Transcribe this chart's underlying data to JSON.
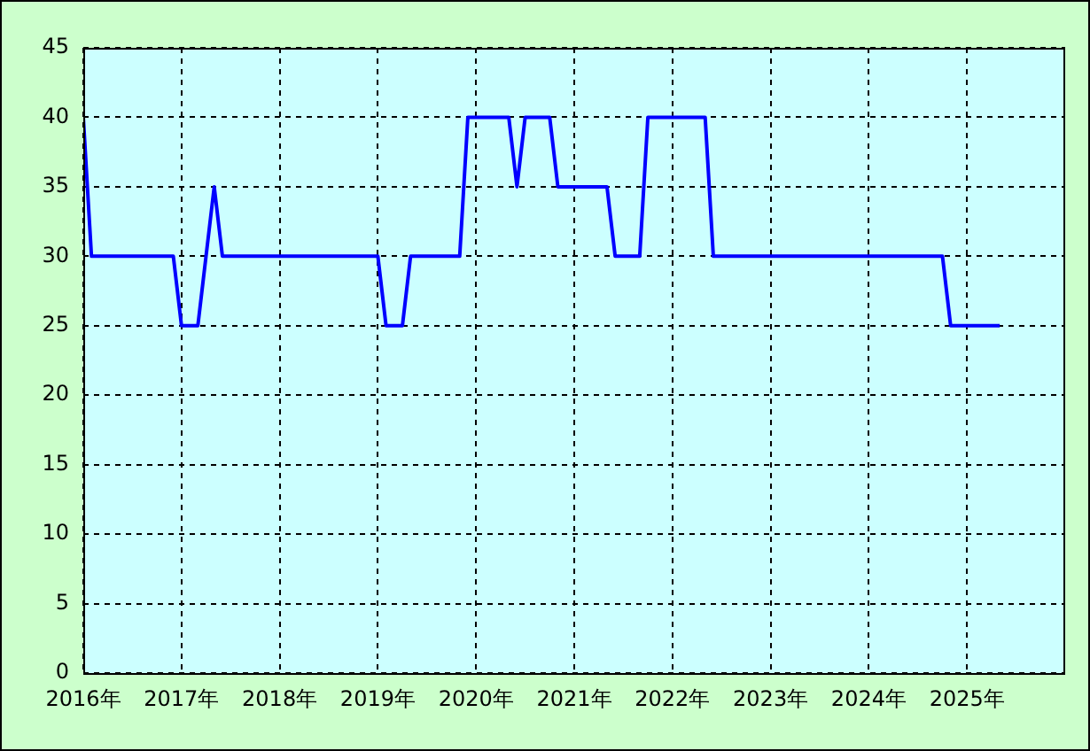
{
  "chart_data": {
    "type": "line",
    "x": [
      "2016-01",
      "2016-02",
      "2016-03",
      "2016-04",
      "2016-05",
      "2016-06",
      "2016-07",
      "2016-08",
      "2016-09",
      "2016-10",
      "2016-11",
      "2016-12",
      "2017-01",
      "2017-02",
      "2017-03",
      "2017-04",
      "2017-05",
      "2017-06",
      "2017-07",
      "2017-08",
      "2017-09",
      "2017-10",
      "2017-11",
      "2017-12",
      "2018-01",
      "2018-02",
      "2018-03",
      "2018-04",
      "2018-05",
      "2018-06",
      "2018-07",
      "2018-08",
      "2018-09",
      "2018-10",
      "2018-11",
      "2018-12",
      "2019-01",
      "2019-02",
      "2019-03",
      "2019-04",
      "2019-05",
      "2019-06",
      "2019-07",
      "2019-08",
      "2019-09",
      "2019-10",
      "2019-11",
      "2019-12",
      "2020-01",
      "2020-02",
      "2020-03",
      "2020-04",
      "2020-05",
      "2020-06",
      "2020-07",
      "2020-08",
      "2020-09",
      "2020-10",
      "2020-11",
      "2020-12",
      "2021-01",
      "2021-02",
      "2021-03",
      "2021-04",
      "2021-05",
      "2021-06",
      "2021-07",
      "2021-08",
      "2021-09",
      "2021-10",
      "2021-11",
      "2021-12",
      "2022-01",
      "2022-02",
      "2022-03",
      "2022-04",
      "2022-05",
      "2022-06",
      "2022-07",
      "2022-08",
      "2022-09",
      "2022-10",
      "2022-11",
      "2022-12",
      "2023-01",
      "2023-02",
      "2023-03",
      "2023-04",
      "2023-05",
      "2023-06",
      "2023-07",
      "2023-08",
      "2023-09",
      "2023-10",
      "2023-11",
      "2023-12",
      "2024-01",
      "2024-02",
      "2024-03",
      "2024-04",
      "2024-05",
      "2024-06",
      "2024-07",
      "2024-08",
      "2024-09",
      "2024-10",
      "2024-11",
      "2024-12",
      "2025-01",
      "2025-02",
      "2025-03",
      "2025-04",
      "2025-05"
    ],
    "series": [
      {
        "color": "#0000ff",
        "values": [
          40,
          30,
          30,
          30,
          30,
          30,
          30,
          30,
          30,
          30,
          30,
          30,
          25,
          25,
          25,
          30,
          35,
          30,
          30,
          30,
          30,
          30,
          30,
          30,
          30,
          30,
          30,
          30,
          30,
          30,
          30,
          30,
          30,
          30,
          30,
          30,
          30,
          25,
          25,
          25,
          30,
          30,
          30,
          30,
          30,
          30,
          30,
          40,
          40,
          40,
          40,
          40,
          40,
          35,
          40,
          40,
          40,
          40,
          35,
          35,
          35,
          35,
          35,
          35,
          35,
          30,
          30,
          30,
          30,
          40,
          40,
          40,
          40,
          40,
          40,
          40,
          40,
          30,
          30,
          30,
          30,
          30,
          30,
          30,
          30,
          30,
          30,
          30,
          30,
          30,
          30,
          30,
          30,
          30,
          30,
          30,
          30,
          30,
          30,
          30,
          30,
          30,
          30,
          30,
          30,
          30,
          25,
          25,
          25,
          25,
          25,
          25,
          25
        ]
      }
    ],
    "xlim": [
      "2016-01",
      "2026-01"
    ],
    "xticks": [
      {
        "value": "2016-01",
        "label": "2016年"
      },
      {
        "value": "2017-01",
        "label": "2017年"
      },
      {
        "value": "2018-01",
        "label": "2018年"
      },
      {
        "value": "2019-01",
        "label": "2019年"
      },
      {
        "value": "2020-01",
        "label": "2020年"
      },
      {
        "value": "2021-01",
        "label": "2021年"
      },
      {
        "value": "2022-01",
        "label": "2022年"
      },
      {
        "value": "2023-01",
        "label": "2023年"
      },
      {
        "value": "2024-01",
        "label": "2024年"
      },
      {
        "value": "2025-01",
        "label": "2025年"
      }
    ],
    "ylim": [
      0,
      45
    ],
    "yticks": [
      0,
      5,
      10,
      15,
      20,
      25,
      30,
      35,
      40,
      45
    ],
    "grid": true,
    "legend": false,
    "marker": "none",
    "line_style": "solid"
  }
}
